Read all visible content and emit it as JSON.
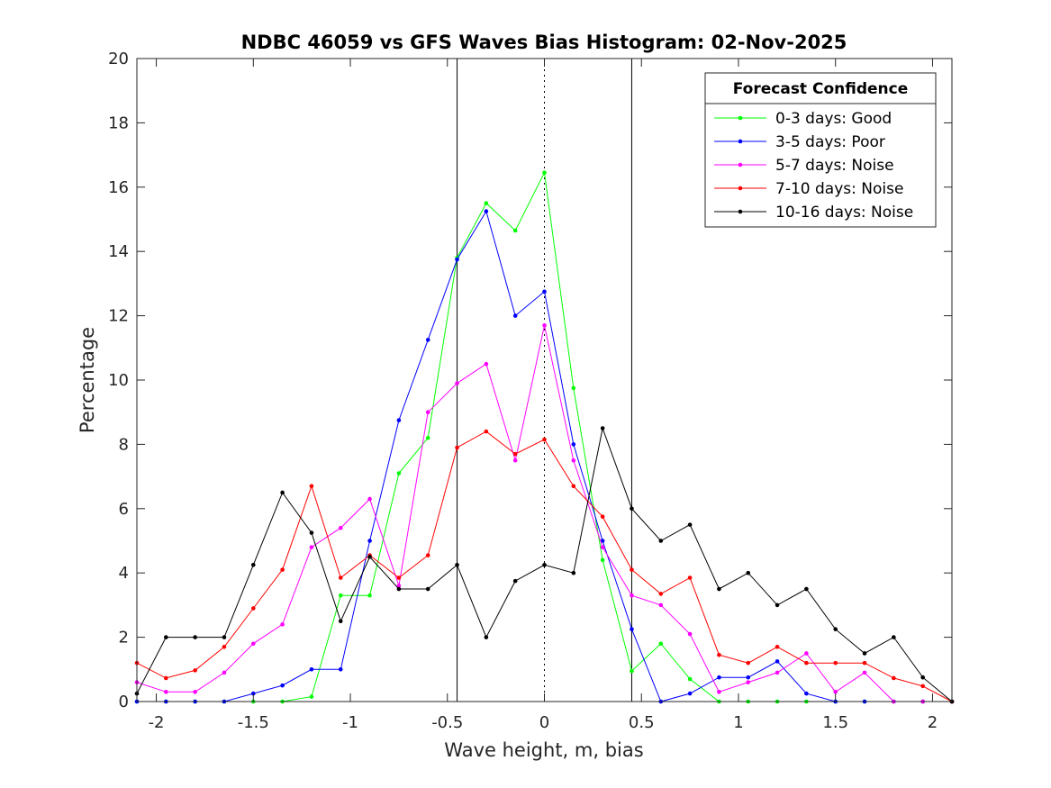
{
  "chart_data": {
    "type": "line",
    "title": "NDBC 46059 vs GFS Waves Bias Histogram: 02-Nov-2025",
    "xlabel": "Wave height, m, bias",
    "ylabel": "Percentage",
    "xlim": [
      -2.1,
      2.1
    ],
    "ylim": [
      0,
      20
    ],
    "xticks": [
      -2,
      -1.5,
      -1,
      -0.5,
      0,
      0.5,
      1,
      1.5,
      2
    ],
    "xtick_labels": [
      "-2",
      "-1.5",
      "-1",
      "-0.5",
      "0",
      "0.5",
      "1",
      "1.5",
      "2"
    ],
    "yticks": [
      0,
      2,
      4,
      6,
      8,
      10,
      12,
      14,
      16,
      18,
      20
    ],
    "ytick_labels": [
      "0",
      "2",
      "4",
      "6",
      "8",
      "10",
      "12",
      "14",
      "16",
      "18",
      "20"
    ],
    "grid": false,
    "reference_lines": {
      "solid": [
        -0.45,
        0.45
      ],
      "dotted": [
        0
      ]
    },
    "legend": {
      "title": "Forecast Confidence",
      "placement": "top-right"
    },
    "x": [
      -2.1,
      -1.95,
      -1.8,
      -1.65,
      -1.5,
      -1.35,
      -1.2,
      -1.05,
      -0.9,
      -0.75,
      -0.6,
      -0.45,
      -0.3,
      -0.15,
      0,
      0.15,
      0.3,
      0.45,
      0.6,
      0.75,
      0.9,
      1.05,
      1.2,
      1.35,
      1.5,
      1.65,
      1.8,
      1.95,
      2.1
    ],
    "series": [
      {
        "name": "0-3 days: Good",
        "color": "#00ff00",
        "values": [
          0,
          0,
          0,
          0,
          0,
          0,
          0.15,
          3.3,
          3.3,
          7.1,
          8.2,
          13.8,
          15.5,
          14.65,
          16.45,
          9.75,
          4.4,
          0.95,
          1.8,
          0.7,
          0,
          0,
          0,
          0,
          0,
          0,
          0,
          0,
          0
        ]
      },
      {
        "name": "3-5 days: Poor",
        "color": "#0000ff",
        "values": [
          0,
          0,
          0,
          0,
          0.25,
          0.5,
          1.0,
          1.0,
          5.0,
          8.75,
          11.25,
          13.75,
          15.25,
          12.0,
          12.75,
          8.0,
          5.0,
          2.25,
          0,
          0.25,
          0.75,
          0.75,
          1.25,
          0.25,
          0,
          0,
          0,
          0,
          0
        ]
      },
      {
        "name": "5-7 days: Noise",
        "color": "#ff00ff",
        "values": [
          0.6,
          0.3,
          0.3,
          0.9,
          1.8,
          2.4,
          4.8,
          5.4,
          6.3,
          3.6,
          9.0,
          9.9,
          10.5,
          7.5,
          11.7,
          7.5,
          4.8,
          3.3,
          3.0,
          2.1,
          0.3,
          0.6,
          0.9,
          1.5,
          0.3,
          0.9,
          0,
          0,
          0
        ]
      },
      {
        "name": "7-10 days: Noise",
        "color": "#ff0000",
        "values": [
          1.2,
          0.73,
          0.97,
          1.7,
          2.9,
          4.1,
          6.7,
          3.85,
          4.55,
          3.85,
          4.55,
          7.9,
          8.4,
          7.7,
          8.15,
          6.7,
          5.75,
          4.1,
          3.35,
          3.85,
          1.45,
          1.2,
          1.7,
          1.2,
          1.2,
          1.2,
          0.73,
          0.48,
          0
        ]
      },
      {
        "name": "10-16 days: Noise",
        "color": "#000000",
        "values": [
          0.25,
          2.0,
          2.0,
          2.0,
          4.25,
          6.5,
          5.25,
          2.5,
          4.5,
          3.5,
          3.5,
          4.25,
          2.0,
          3.75,
          4.25,
          4.0,
          8.5,
          6.0,
          5.0,
          5.5,
          3.5,
          4.0,
          3.0,
          3.5,
          2.25,
          1.5,
          2.0,
          0.75,
          0
        ]
      }
    ]
  }
}
